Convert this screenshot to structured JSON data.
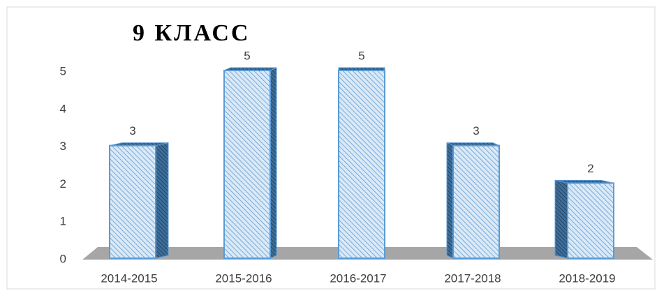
{
  "chart_data": {
    "type": "bar",
    "title": "9 КЛАСС",
    "categories": [
      "2014-2015",
      "2015-2016",
      "2016-2017",
      "2017-2018",
      "2018-2019"
    ],
    "values": [
      3,
      5,
      5,
      3,
      2
    ],
    "color": "#5b9bd5",
    "ylim": [
      0,
      5
    ],
    "yticks": [
      0,
      1,
      2,
      3,
      4,
      5
    ],
    "grid": false
  }
}
